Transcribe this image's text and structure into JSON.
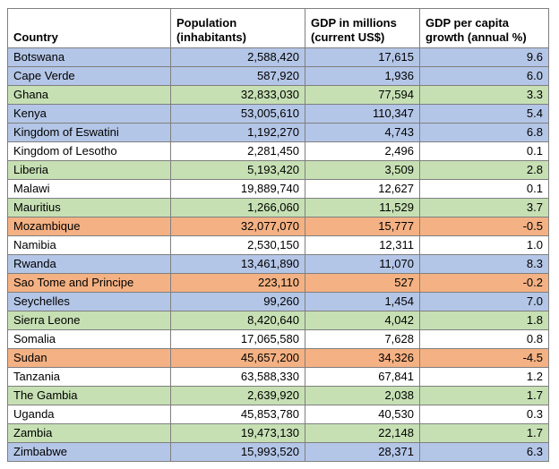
{
  "table": {
    "headers": [
      [
        "Country"
      ],
      [
        "Population",
        "(inhabitants)"
      ],
      [
        "GDP in millions",
        "(current US$)"
      ],
      [
        "GDP per capita",
        "growth (annual %)"
      ]
    ],
    "rows": [
      {
        "country": "Botswana",
        "population": "2,588,420",
        "gdp": "17,615",
        "growth": "9.6",
        "band": "blue"
      },
      {
        "country": "Cape Verde",
        "population": "587,920",
        "gdp": "1,936",
        "growth": "6.0",
        "band": "blue"
      },
      {
        "country": "Ghana",
        "population": "32,833,030",
        "gdp": "77,594",
        "growth": "3.3",
        "band": "green"
      },
      {
        "country": "Kenya",
        "population": "53,005,610",
        "gdp": "110,347",
        "growth": "5.4",
        "band": "blue"
      },
      {
        "country": "Kingdom of Eswatini",
        "population": "1,192,270",
        "gdp": "4,743",
        "growth": "6.8",
        "band": "blue"
      },
      {
        "country": "Kingdom of Lesotho",
        "population": "2,281,450",
        "gdp": "2,496",
        "growth": "0.1",
        "band": "white"
      },
      {
        "country": "Liberia",
        "population": "5,193,420",
        "gdp": "3,509",
        "growth": "2.8",
        "band": "green"
      },
      {
        "country": "Malawi",
        "population": "19,889,740",
        "gdp": "12,627",
        "growth": "0.1",
        "band": "white"
      },
      {
        "country": "Mauritius",
        "population": "1,266,060",
        "gdp": "11,529",
        "growth": "3.7",
        "band": "green"
      },
      {
        "country": "Mozambique",
        "population": "32,077,070",
        "gdp": "15,777",
        "growth": "-0.5",
        "band": "orange"
      },
      {
        "country": "Namibia",
        "population": "2,530,150",
        "gdp": "12,311",
        "growth": "1.0",
        "band": "white"
      },
      {
        "country": "Rwanda",
        "population": "13,461,890",
        "gdp": "11,070",
        "growth": "8.3",
        "band": "blue"
      },
      {
        "country": "Sao Tome and Principe",
        "population": "223,110",
        "gdp": "527",
        "growth": "-0.2",
        "band": "orange"
      },
      {
        "country": "Seychelles",
        "population": "99,260",
        "gdp": "1,454",
        "growth": "7.0",
        "band": "blue"
      },
      {
        "country": "Sierra Leone",
        "population": "8,420,640",
        "gdp": "4,042",
        "growth": "1.8",
        "band": "green"
      },
      {
        "country": "Somalia",
        "population": "17,065,580",
        "gdp": "7,628",
        "growth": "0.8",
        "band": "white"
      },
      {
        "country": "Sudan",
        "population": "45,657,200",
        "gdp": "34,326",
        "growth": "-4.5",
        "band": "orange"
      },
      {
        "country": "Tanzania",
        "population": "63,588,330",
        "gdp": "67,841",
        "growth": "1.2",
        "band": "white"
      },
      {
        "country": "The Gambia",
        "population": "2,639,920",
        "gdp": "2,038",
        "growth": "1.7",
        "band": "green"
      },
      {
        "country": "Uganda",
        "population": "45,853,780",
        "gdp": "40,530",
        "growth": "0.3",
        "band": "white"
      },
      {
        "country": "Zambia",
        "population": "19,473,130",
        "gdp": "22,148",
        "growth": "1.7",
        "band": "green"
      },
      {
        "country": "Zimbabwe",
        "population": "15,993,520",
        "gdp": "28,371",
        "growth": "6.3",
        "band": "blue"
      }
    ]
  },
  "colors": {
    "blue": "#b4c6e7",
    "green": "#c6e0b4",
    "orange": "#f4b183",
    "white": "#ffffff",
    "border": "#7f7f7f"
  }
}
